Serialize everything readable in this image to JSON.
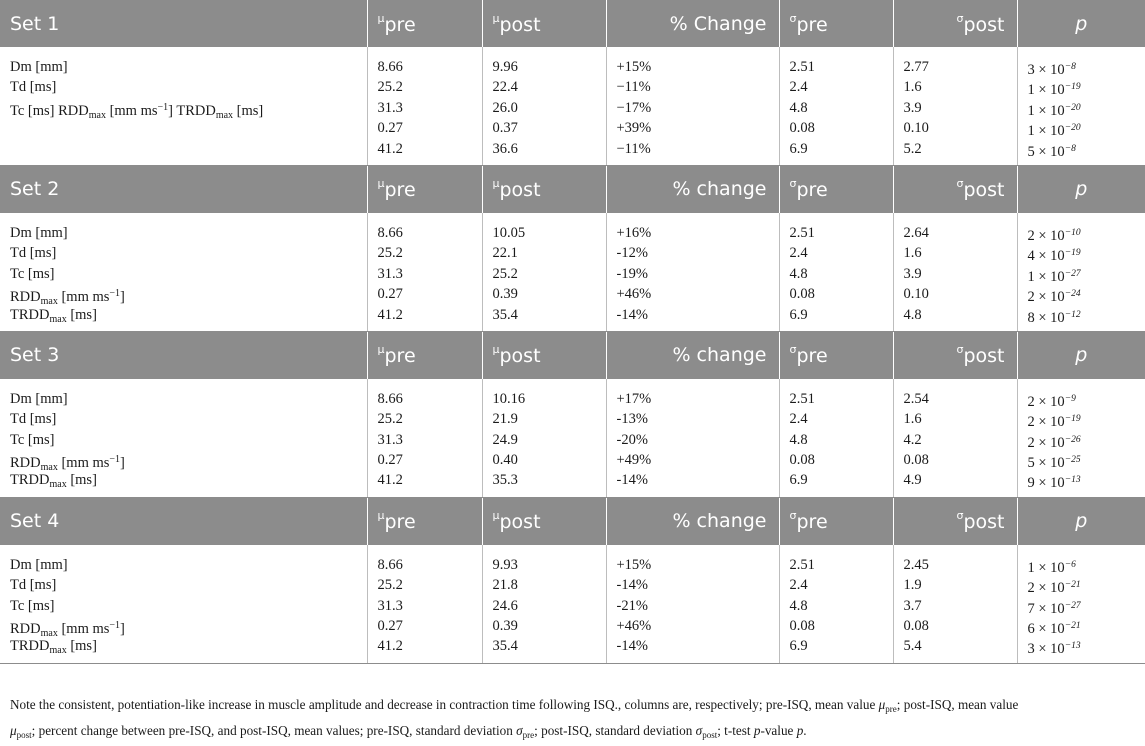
{
  "headers": {
    "mu": "μ",
    "sigma": "σ",
    "pre": "pre",
    "post": "post",
    "change_upper": "% Change",
    "change_lower": "% change",
    "p": "p"
  },
  "sets": [
    {
      "title": "Set 1",
      "change_header": "% Change",
      "labels_multi": true,
      "label_lines": [
        "Dm [mm]",
        "Td [ms]",
        "Tc [ms] RDD",
        "max",
        " [mm ms",
        "−1",
        "] TRDD",
        "max",
        " [ms]"
      ],
      "mu_pre": [
        "8.66",
        "25.2",
        "31.3",
        "0.27",
        "41.2"
      ],
      "mu_post": [
        "9.96",
        "22.4",
        "26.0",
        "0.37",
        "36.6"
      ],
      "change": [
        "+15%",
        "−11%",
        "−17%",
        "+39%",
        "−11%"
      ],
      "sd_pre": [
        "2.51",
        "2.4",
        "4.8",
        "0.08",
        "6.9"
      ],
      "sd_post": [
        "2.77",
        "1.6",
        "3.9",
        "0.10",
        "5.2"
      ],
      "p_base": [
        "3 × 10",
        "1 × 10",
        "1 × 10",
        "1 × 10",
        "5 × 10"
      ],
      "p_exp": [
        "−8",
        "−19",
        "−20",
        "−20",
        "−8"
      ]
    },
    {
      "title": "Set 2",
      "change_header": "% change",
      "labels_multi": false,
      "label_lines": [
        "Dm [mm]",
        "Td [ms]",
        "Tc [ms]",
        "RDD",
        "TRDD"
      ],
      "mu_pre": [
        "8.66",
        "25.2",
        "31.3",
        "0.27",
        "41.2"
      ],
      "mu_post": [
        "10.05",
        "22.1",
        "25.2",
        "0.39",
        "35.4"
      ],
      "change": [
        "+16%",
        "-12%",
        "-19%",
        "+46%",
        "-14%"
      ],
      "sd_pre": [
        "2.51",
        "2.4",
        "4.8",
        "0.08",
        "6.9"
      ],
      "sd_post": [
        "2.64",
        "1.6",
        "3.9",
        "0.10",
        "4.8"
      ],
      "p_base": [
        "2 × 10",
        "4 × 10",
        "1 × 10",
        "2 × 10",
        "8 × 10"
      ],
      "p_exp": [
        "−10",
        "−19",
        "−27",
        "−24",
        "−12"
      ]
    },
    {
      "title": "Set 3",
      "change_header": "% change",
      "labels_multi": false,
      "label_lines": [
        "Dm [mm]",
        "Td [ms]",
        "Tc [ms]",
        "RDD",
        "TRDD"
      ],
      "mu_pre": [
        "8.66",
        "25.2",
        "31.3",
        "0.27",
        "41.2"
      ],
      "mu_post": [
        "10.16",
        "21.9",
        "24.9",
        "0.40",
        "35.3"
      ],
      "change": [
        "+17%",
        "-13%",
        "-20%",
        "+49%",
        "-14%"
      ],
      "sd_pre": [
        "2.51",
        "2.4",
        "4.8",
        "0.08",
        "6.9"
      ],
      "sd_post": [
        "2.54",
        "1.6",
        "4.2",
        "0.08",
        "4.9"
      ],
      "p_base": [
        "2 × 10",
        "2 × 10",
        "2 × 10",
        "5 × 10",
        "9 × 10"
      ],
      "p_exp": [
        "−9",
        "−19",
        "−26",
        "−25",
        "−13"
      ]
    },
    {
      "title": "Set 4",
      "change_header": "% change",
      "labels_multi": false,
      "label_lines": [
        "Dm [mm]",
        "Td [ms]",
        "Tc [ms]",
        "RDD",
        "TRDD"
      ],
      "mu_pre": [
        "8.66",
        "25.2",
        "31.3",
        "0.27",
        "41.2"
      ],
      "mu_post": [
        "9.93",
        "21.8",
        "24.6",
        "0.39",
        "35.4"
      ],
      "change": [
        "+15%",
        "-14%",
        "-21%",
        "+46%",
        "-14%"
      ],
      "sd_pre": [
        "2.51",
        "2.4",
        "4.8",
        "0.08",
        "6.9"
      ],
      "sd_post": [
        "2.45",
        "1.9",
        "3.7",
        "0.08",
        "5.4"
      ],
      "p_base": [
        "1 × 10",
        "2 × 10",
        "7 × 10",
        "6 × 10",
        "3 × 10"
      ],
      "p_exp": [
        "−6",
        "−21",
        "−27",
        "−21",
        "−13"
      ]
    }
  ],
  "unit_labels": {
    "max_sub": "max",
    "rdd_unit": " [mm ms",
    "rdd_unit_exp": "−1",
    "rdd_unit_close": "]",
    "trdd_unit": " [ms]"
  },
  "note": {
    "text1": "Note the consistent, potentiation-like increase in muscle amplitude and decrease in contraction time following ISQ., columns are, respectively; pre-ISQ, mean value ",
    "mu_pre": "μ",
    "sub_pre": "pre",
    "text2": "; post-ISQ, mean value",
    "mu_post": "μ",
    "sub_post": "post",
    "text3": "; percent change between pre-ISQ, and post-ISQ, mean values; pre-ISQ, standard deviation ",
    "sigma_pre": "σ",
    "sub_pre2": "pre",
    "text4": "; post-ISQ, standard deviation ",
    "sigma_post": "σ",
    "sub_post2": "post",
    "text5": "; t-test ",
    "p_ital": "p",
    "text6": "-value ",
    "p_ital2": "p",
    "text7": "."
  }
}
